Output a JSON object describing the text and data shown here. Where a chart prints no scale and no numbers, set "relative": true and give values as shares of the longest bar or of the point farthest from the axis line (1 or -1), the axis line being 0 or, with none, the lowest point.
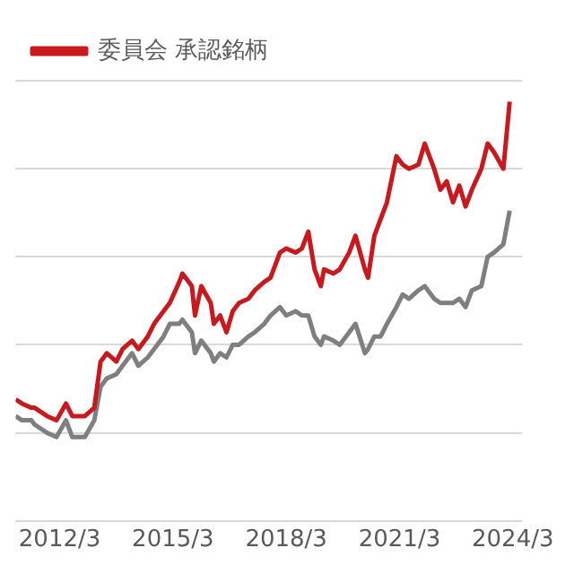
{
  "chart_data": {
    "type": "line",
    "relative": true,
    "grid": "y",
    "legend": "top left",
    "marker": "none",
    "line_style": "solid",
    "x": [
      "2011-01",
      "2011-03",
      "2011-06",
      "2011-07",
      "2011-11",
      "2012-02",
      "2012-05",
      "2012-07",
      "2012-11",
      "2013-02",
      "2013-04",
      "2013-06",
      "2013-09",
      "2013-11",
      "2014-02",
      "2014-04",
      "2014-07",
      "2014-09",
      "2014-12",
      "2015-02",
      "2015-05",
      "2015-06",
      "2015-09",
      "2015-10",
      "2015-12",
      "2016-03",
      "2016-04",
      "2016-06",
      "2016-08",
      "2016-10",
      "2016-12",
      "2017-03",
      "2017-05",
      "2017-08",
      "2017-10",
      "2018-01",
      "2018-03",
      "2018-06",
      "2018-08",
      "2018-10",
      "2018-12",
      "2019-02",
      "2019-03",
      "2019-06",
      "2019-08",
      "2019-11",
      "2020-01",
      "2020-04",
      "2020-05",
      "2020-07",
      "2020-09",
      "2020-11",
      "2021-02",
      "2021-04",
      "2021-06",
      "2021-09",
      "2021-11",
      "2022-02",
      "2022-04",
      "2022-06",
      "2022-08",
      "2022-10",
      "2022-12",
      "2023-02",
      "2023-05",
      "2023-07",
      "2023-09",
      "2023-12",
      "2024-02"
    ],
    "xlim": [
      "2011-01",
      "2024-06"
    ],
    "xticks": [
      {
        "value": "2012-03",
        "label": "2012/3"
      },
      {
        "value": "2015-03",
        "label": "2015/3"
      },
      {
        "value": "2018-03",
        "label": "2018/3"
      },
      {
        "value": "2021-03",
        "label": "2021/3"
      },
      {
        "value": "2024-03",
        "label": "2024/3"
      }
    ],
    "series": [
      {
        "name": "委員会 承認銘柄",
        "color": "#c8191e",
        "values": [
          0.29,
          0.28,
          0.27,
          0.27,
          0.25,
          0.24,
          0.28,
          0.25,
          0.25,
          0.27,
          0.38,
          0.4,
          0.38,
          0.41,
          0.43,
          0.41,
          0.44,
          0.47,
          0.5,
          0.52,
          0.57,
          0.59,
          0.56,
          0.49,
          0.56,
          0.52,
          0.47,
          0.49,
          0.45,
          0.5,
          0.52,
          0.53,
          0.55,
          0.57,
          0.58,
          0.64,
          0.65,
          0.64,
          0.65,
          0.69,
          0.6,
          0.56,
          0.6,
          0.59,
          0.6,
          0.64,
          0.68,
          0.6,
          0.58,
          0.68,
          0.72,
          0.76,
          0.87,
          0.85,
          0.84,
          0.85,
          0.9,
          0.84,
          0.79,
          0.81,
          0.76,
          0.8,
          0.75,
          0.79,
          0.84,
          0.9,
          0.88,
          0.84,
          1
        ]
      },
      {
        "color": "#7f7f7f",
        "values": [
          0.25,
          0.24,
          0.24,
          0.23,
          0.21,
          0.2,
          0.24,
          0.2,
          0.2,
          0.24,
          0.32,
          0.34,
          0.35,
          0.37,
          0.4,
          0.37,
          0.39,
          0.41,
          0.44,
          0.47,
          0.47,
          0.48,
          0.45,
          0.4,
          0.43,
          0.4,
          0.38,
          0.4,
          0.39,
          0.42,
          0.42,
          0.44,
          0.45,
          0.47,
          0.49,
          0.51,
          0.49,
          0.5,
          0.49,
          0.49,
          0.44,
          0.42,
          0.44,
          0.43,
          0.42,
          0.45,
          0.47,
          0.4,
          0.41,
          0.44,
          0.44,
          0.47,
          0.51,
          0.54,
          0.53,
          0.55,
          0.56,
          0.53,
          0.52,
          0.52,
          0.52,
          0.53,
          0.51,
          0.55,
          0.56,
          0.63,
          0.64,
          0.66,
          0.74
        ]
      }
    ]
  }
}
